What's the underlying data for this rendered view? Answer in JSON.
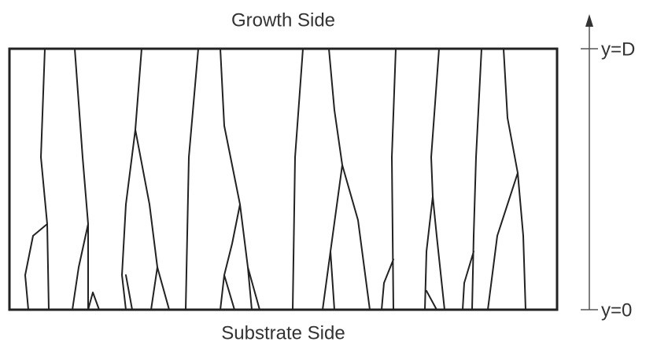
{
  "header": {
    "title": "Growth Side"
  },
  "footer": {
    "title": "Substrate Side"
  },
  "axis": {
    "top_label": "y=D",
    "bottom_label": "y=0"
  }
}
